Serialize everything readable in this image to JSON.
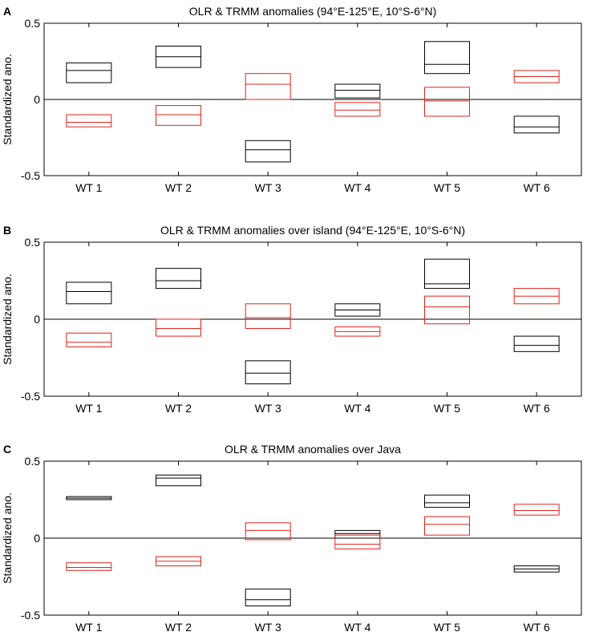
{
  "colors": {
    "olr": "#000000",
    "trmm": "#e0231b",
    "axis": "#000000",
    "background": "#ffffff"
  },
  "chart_data": [
    {
      "type": "box",
      "panel_letter": "A",
      "title": "OLR & TRMM anomalies (94°E-125°E, 10°S-6°N)",
      "ylabel": "Standardized ano.",
      "xlabel": "",
      "ylim": [
        -0.5,
        0.5
      ],
      "yticks": [
        "-0.5",
        "0",
        "0.5"
      ],
      "categories": [
        "WT 1",
        "WT 2",
        "WT 3",
        "WT 4",
        "WT 5",
        "WT 6"
      ],
      "series": [
        {
          "name": "OLR",
          "color": "#000000",
          "values": [
            {
              "low": 0.11,
              "mid": 0.19,
              "high": 0.24
            },
            {
              "low": 0.21,
              "mid": 0.28,
              "high": 0.35
            },
            {
              "low": -0.41,
              "mid": -0.33,
              "high": -0.27
            },
            {
              "low": 0.01,
              "mid": 0.06,
              "high": 0.1
            },
            {
              "low": 0.17,
              "mid": 0.23,
              "high": 0.38
            },
            {
              "low": -0.22,
              "mid": -0.18,
              "high": -0.11
            }
          ]
        },
        {
          "name": "TRMM",
          "color": "#e0231b",
          "values": [
            {
              "low": -0.18,
              "mid": -0.15,
              "high": -0.1
            },
            {
              "low": -0.17,
              "mid": -0.1,
              "high": -0.04
            },
            {
              "low": 0.0,
              "mid": 0.1,
              "high": 0.17
            },
            {
              "low": -0.11,
              "mid": -0.07,
              "high": -0.02
            },
            {
              "low": -0.11,
              "mid": -0.01,
              "high": 0.08
            },
            {
              "low": 0.11,
              "mid": 0.15,
              "high": 0.19
            }
          ]
        }
      ]
    },
    {
      "type": "box",
      "panel_letter": "B",
      "title": "OLR & TRMM anomalies over island (94°E-125°E, 10°S-6°N)",
      "ylabel": "Standardized ano.",
      "xlabel": "",
      "ylim": [
        -0.5,
        0.5
      ],
      "yticks": [
        "-0.5",
        "0",
        "0.5"
      ],
      "categories": [
        "WT 1",
        "WT 2",
        "WT 3",
        "WT 4",
        "WT 5",
        "WT 6"
      ],
      "series": [
        {
          "name": "OLR",
          "color": "#000000",
          "values": [
            {
              "low": 0.1,
              "mid": 0.18,
              "high": 0.24
            },
            {
              "low": 0.2,
              "mid": 0.25,
              "high": 0.33
            },
            {
              "low": -0.42,
              "mid": -0.35,
              "high": -0.27
            },
            {
              "low": 0.02,
              "mid": 0.06,
              "high": 0.1
            },
            {
              "low": 0.2,
              "mid": 0.23,
              "high": 0.39
            },
            {
              "low": -0.21,
              "mid": -0.17,
              "high": -0.11
            }
          ]
        },
        {
          "name": "TRMM",
          "color": "#e0231b",
          "values": [
            {
              "low": -0.18,
              "mid": -0.15,
              "high": -0.09
            },
            {
              "low": -0.11,
              "mid": -0.06,
              "high": 0.0
            },
            {
              "low": -0.06,
              "mid": 0.01,
              "high": 0.1
            },
            {
              "low": -0.11,
              "mid": -0.08,
              "high": -0.05
            },
            {
              "low": -0.03,
              "mid": 0.08,
              "high": 0.15
            },
            {
              "low": 0.1,
              "mid": 0.15,
              "high": 0.2
            }
          ]
        }
      ]
    },
    {
      "type": "box",
      "panel_letter": "C",
      "title": "OLR & TRMM anomalies over Java",
      "ylabel": "Standardized ano.",
      "xlabel": "",
      "ylim": [
        -0.5,
        0.5
      ],
      "yticks": [
        "-0.5",
        "0",
        "0.5"
      ],
      "categories": [
        "WT 1",
        "WT 2",
        "WT 3",
        "WT 4",
        "WT 5",
        "WT 6"
      ],
      "series": [
        {
          "name": "OLR",
          "color": "#000000",
          "values": [
            {
              "low": 0.25,
              "mid": 0.26,
              "high": 0.27
            },
            {
              "low": 0.34,
              "mid": 0.39,
              "high": 0.41
            },
            {
              "low": -0.44,
              "mid": -0.4,
              "high": -0.33
            },
            {
              "low": 0.0,
              "mid": 0.03,
              "high": 0.05
            },
            {
              "low": 0.2,
              "mid": 0.23,
              "high": 0.28
            },
            {
              "low": -0.22,
              "mid": -0.2,
              "high": -0.18
            }
          ]
        },
        {
          "name": "TRMM",
          "color": "#e0231b",
          "values": [
            {
              "low": -0.21,
              "mid": -0.19,
              "high": -0.16
            },
            {
              "low": -0.18,
              "mid": -0.15,
              "high": -0.12
            },
            {
              "low": -0.01,
              "mid": 0.05,
              "high": 0.1
            },
            {
              "low": -0.07,
              "mid": -0.04,
              "high": 0.02
            },
            {
              "low": 0.02,
              "mid": 0.09,
              "high": 0.14
            },
            {
              "low": 0.15,
              "mid": 0.18,
              "high": 0.22
            }
          ]
        }
      ]
    }
  ]
}
